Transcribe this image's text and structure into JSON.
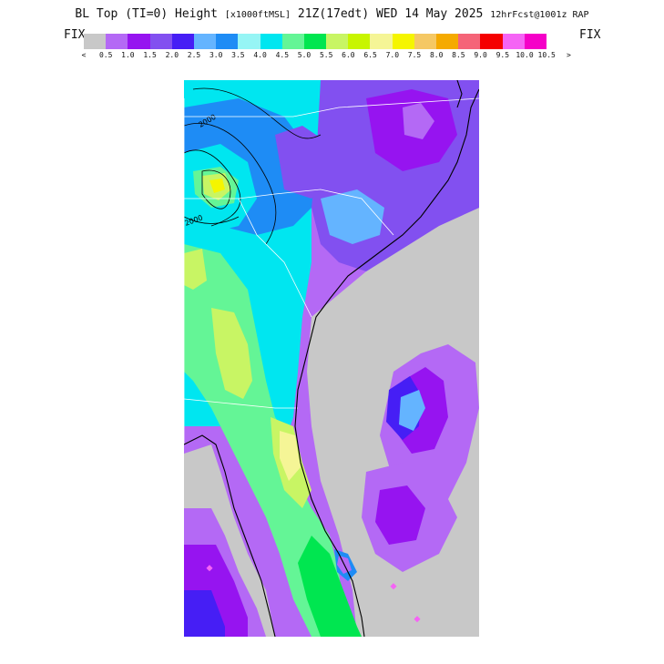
{
  "title": {
    "main": "BL Top (TI=0) Height",
    "units": "[x1000ftMSL]",
    "valid": "21Z(17edt) WED 14 May 2025",
    "forecast": "12hrFcst@1001z RAP"
  },
  "fix_left": "FIX",
  "fix_right": "FIX",
  "color_scale": {
    "colors": [
      "#c8c8c8",
      "#b469f5",
      "#9614f0",
      "#8250f0",
      "#461ef5",
      "#64b4ff",
      "#1e8cf5",
      "#96f5f5",
      "#00e6f0",
      "#64f596",
      "#00e650",
      "#c8f564",
      "#c8f500",
      "#f5f596",
      "#f5f500",
      "#f5c864",
      "#f5aa00",
      "#f56478",
      "#f50000",
      "#f564f5",
      "#f500c8"
    ],
    "tick_labels": [
      "<",
      "0.5",
      "1.0",
      "1.5",
      "2.0",
      "2.5",
      "3.0",
      "3.5",
      "4.0",
      "4.5",
      "5.0",
      "5.5",
      "6.0",
      "6.5",
      "7.0",
      "7.5",
      "8.0",
      "8.5",
      "9.0",
      "9.5",
      "10.0",
      "10.5",
      ">"
    ]
  },
  "map": {
    "contour_labels": [
      "2000",
      "2000"
    ],
    "land_color": "#c8c8c8"
  }
}
